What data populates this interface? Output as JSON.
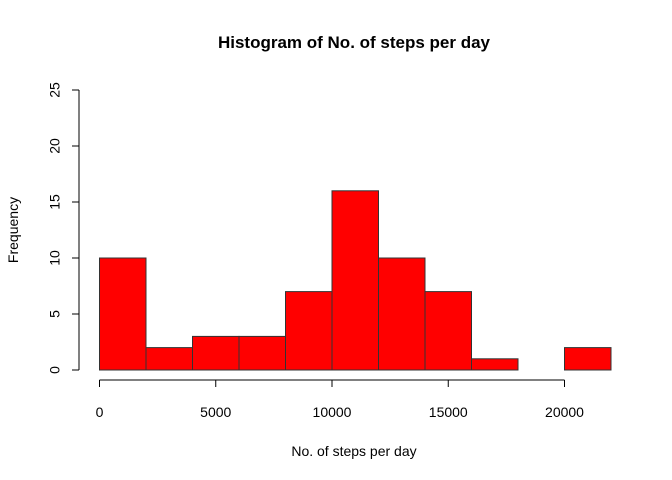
{
  "chart_data": {
    "type": "bar",
    "title": "Histogram of No. of steps per day",
    "xlabel": "No. of steps per day",
    "ylabel": "Frequency",
    "bin_width": 2000,
    "bins": [
      {
        "start": 0,
        "end": 2000,
        "count": 10
      },
      {
        "start": 2000,
        "end": 4000,
        "count": 2
      },
      {
        "start": 4000,
        "end": 6000,
        "count": 3
      },
      {
        "start": 6000,
        "end": 8000,
        "count": 3
      },
      {
        "start": 8000,
        "end": 10000,
        "count": 7
      },
      {
        "start": 10000,
        "end": 12000,
        "count": 16
      },
      {
        "start": 12000,
        "end": 14000,
        "count": 10
      },
      {
        "start": 14000,
        "end": 16000,
        "count": 7
      },
      {
        "start": 16000,
        "end": 18000,
        "count": 1
      },
      {
        "start": 18000,
        "end": 20000,
        "count": 0
      },
      {
        "start": 20000,
        "end": 22000,
        "count": 2
      }
    ],
    "xlim": [
      0,
      22000
    ],
    "ylim": [
      0,
      25
    ],
    "xticks": [
      "0",
      "5000",
      "10000",
      "15000",
      "20000"
    ],
    "yticks": [
      "0",
      "5",
      "10",
      "15",
      "20",
      "25"
    ],
    "bar_color": "#ff0000",
    "bar_border_color": "#333333",
    "grid": false,
    "legend": "none"
  }
}
